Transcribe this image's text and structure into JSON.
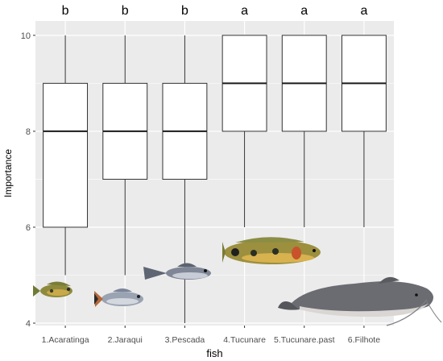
{
  "chart_data": {
    "type": "boxplot",
    "title": "",
    "xlabel": "fish",
    "ylabel": "Importance",
    "ylim": [
      3.95,
      10.3
    ],
    "y_ticks": [
      4,
      6,
      8,
      10
    ],
    "grid": true,
    "categories": [
      "1.Acaratinga",
      "2.Jaraqui",
      "3.Pescada",
      "4.Tucunare",
      "5.Tucunare.past",
      "6.Filhote"
    ],
    "boxes": [
      {
        "min": 5,
        "q1": 6,
        "median": 8,
        "q3": 9,
        "max": 10
      },
      {
        "min": 5,
        "q1": 7,
        "median": 8,
        "q3": 9,
        "max": 10
      },
      {
        "min": 4,
        "q1": 7,
        "median": 8,
        "q3": 9,
        "max": 10
      },
      {
        "min": 6,
        "q1": 8,
        "median": 9,
        "q3": 10,
        "max": 10
      },
      {
        "min": 6,
        "q1": 8,
        "median": 9,
        "q3": 10,
        "max": 10
      },
      {
        "min": 6,
        "q1": 8,
        "median": 9,
        "q3": 10,
        "max": 10
      }
    ],
    "group_letters": [
      "b",
      "b",
      "b",
      "a",
      "a",
      "a"
    ],
    "fish_images": [
      "fish-acaratinga",
      "fish-jaraqui",
      "fish-pescada",
      "fish-tucunare",
      "fish-tucunare-past",
      "fish-filhote"
    ],
    "colors": {
      "panel": "#ebebeb",
      "grid": "#ffffff",
      "box_fill": "#ffffff",
      "box_stroke": "#333333"
    }
  }
}
